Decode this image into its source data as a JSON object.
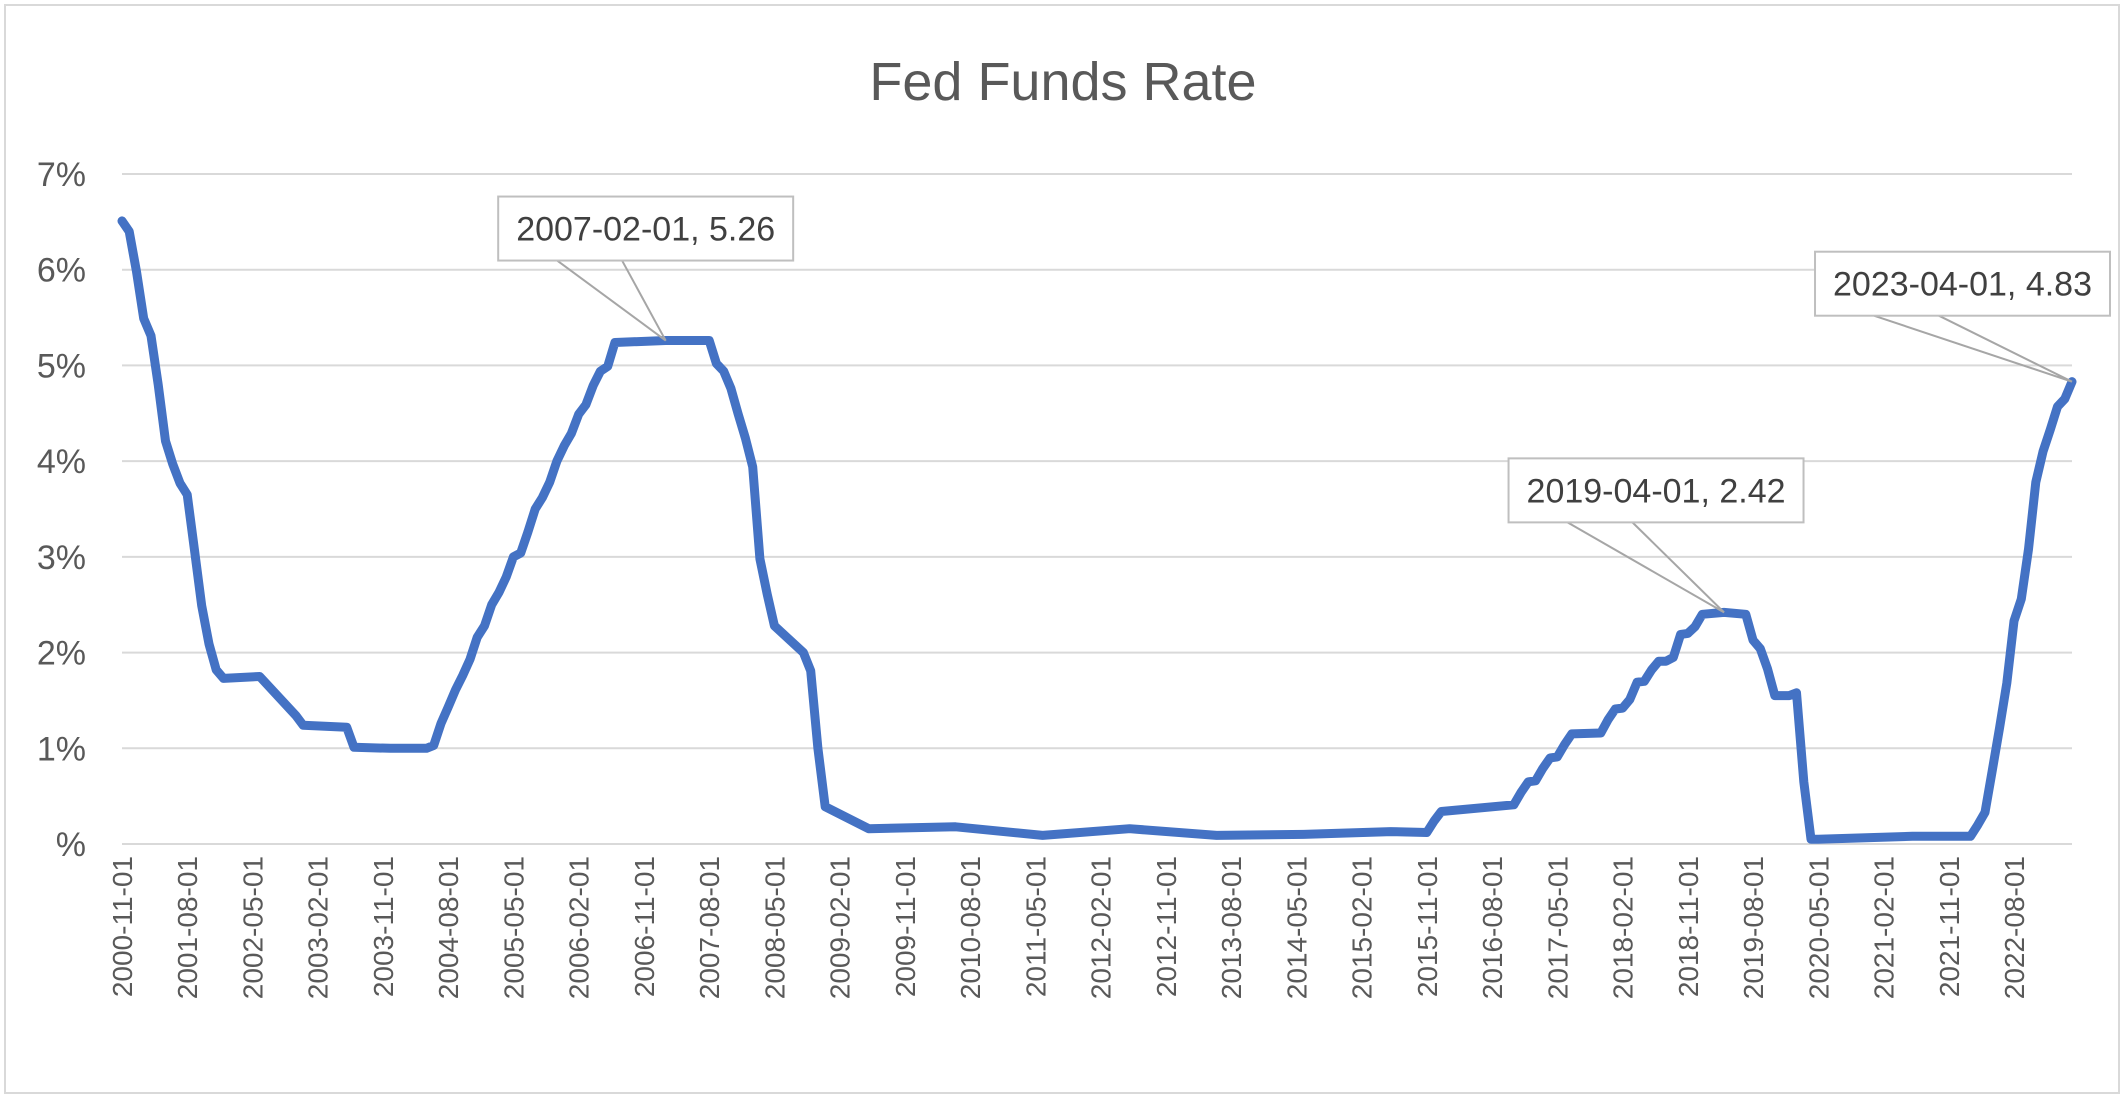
{
  "chart_data": {
    "type": "line",
    "title": "Fed Funds Rate",
    "xlabel": "",
    "ylabel": "",
    "ylim": [
      0,
      7
    ],
    "ytick_values": [
      0,
      1,
      2,
      3,
      4,
      5,
      6,
      7
    ],
    "ytick_labels": [
      "%",
      "1%",
      "2%",
      "3%",
      "4%",
      "5%",
      "6%",
      "7%"
    ],
    "xlim": [
      "2000-11-01",
      "2023-04-01"
    ],
    "xtick_labels": [
      "2000-11-01",
      "2001-08-01",
      "2002-05-01",
      "2003-02-01",
      "2003-11-01",
      "2004-08-01",
      "2005-05-01",
      "2006-02-01",
      "2006-11-01",
      "2007-08-01",
      "2008-05-01",
      "2009-02-01",
      "2009-11-01",
      "2010-08-01",
      "2011-05-01",
      "2012-02-01",
      "2012-11-01",
      "2013-08-01",
      "2014-05-01",
      "2015-02-01",
      "2015-11-01",
      "2016-08-01",
      "2017-05-01",
      "2018-02-01",
      "2018-11-01",
      "2019-08-01",
      "2020-05-01",
      "2021-02-01",
      "2021-11-01",
      "2022-08-01"
    ],
    "grid": true,
    "series_color": "#4472c4",
    "series": [
      {
        "x": [
          "2000-11-01",
          "2000-12-01",
          "2001-01-01",
          "2001-02-01",
          "2001-03-01",
          "2001-04-01",
          "2001-05-01",
          "2001-06-01",
          "2001-07-01",
          "2001-08-01",
          "2001-09-01",
          "2001-10-01",
          "2001-11-01",
          "2001-12-01",
          "2002-01-01",
          "2002-06-01",
          "2002-11-01",
          "2002-12-01",
          "2003-06-01",
          "2003-07-01",
          "2003-12-01",
          "2004-05-01",
          "2004-06-01",
          "2004-07-01",
          "2004-08-01",
          "2004-09-01",
          "2004-10-01",
          "2004-11-01",
          "2004-12-01",
          "2005-01-01",
          "2005-02-01",
          "2005-03-01",
          "2005-04-01",
          "2005-05-01",
          "2005-06-01",
          "2005-07-01",
          "2005-08-01",
          "2005-09-01",
          "2005-10-01",
          "2005-11-01",
          "2005-12-01",
          "2006-01-01",
          "2006-02-01",
          "2006-03-01",
          "2006-04-01",
          "2006-05-01",
          "2006-06-01",
          "2006-07-01",
          "2007-02-01",
          "2007-08-01",
          "2007-09-01",
          "2007-10-01",
          "2007-11-01",
          "2007-12-01",
          "2008-01-01",
          "2008-02-01",
          "2008-03-01",
          "2008-04-01",
          "2008-05-01",
          "2008-09-01",
          "2008-10-01",
          "2008-11-01",
          "2008-12-01",
          "2009-06-01",
          "2010-06-01",
          "2011-06-01",
          "2012-06-01",
          "2013-06-01",
          "2014-06-01",
          "2015-06-01",
          "2015-11-01",
          "2015-12-01",
          "2016-01-01",
          "2016-11-01",
          "2016-12-01",
          "2017-01-01",
          "2017-02-01",
          "2017-03-01",
          "2017-04-01",
          "2017-05-01",
          "2017-06-01",
          "2017-07-01",
          "2017-11-01",
          "2017-12-01",
          "2018-01-01",
          "2018-02-01",
          "2018-03-01",
          "2018-04-01",
          "2018-05-01",
          "2018-06-01",
          "2018-07-01",
          "2018-08-01",
          "2018-09-01",
          "2018-10-01",
          "2018-11-01",
          "2018-12-01",
          "2019-01-01",
          "2019-04-01",
          "2019-07-01",
          "2019-08-01",
          "2019-09-01",
          "2019-10-01",
          "2019-11-01",
          "2020-01-01",
          "2020-02-01",
          "2020-03-01",
          "2020-04-01",
          "2020-05-01",
          "2021-06-01",
          "2022-02-01",
          "2022-03-01",
          "2022-04-01",
          "2022-05-01",
          "2022-06-01",
          "2022-07-01",
          "2022-08-01",
          "2022-09-01",
          "2022-10-01",
          "2022-11-01",
          "2022-12-01",
          "2023-01-01",
          "2023-02-01",
          "2023-03-01",
          "2023-04-01"
        ],
        "values": [
          6.51,
          6.4,
          5.98,
          5.49,
          5.31,
          4.8,
          4.21,
          3.97,
          3.77,
          3.65,
          3.07,
          2.49,
          2.09,
          1.82,
          1.73,
          1.75,
          1.34,
          1.24,
          1.22,
          1.01,
          1.0,
          1.0,
          1.03,
          1.26,
          1.43,
          1.61,
          1.76,
          1.93,
          2.16,
          2.28,
          2.5,
          2.63,
          2.79,
          3.0,
          3.04,
          3.26,
          3.5,
          3.62,
          3.78,
          4.0,
          4.16,
          4.29,
          4.49,
          4.59,
          4.79,
          4.94,
          4.99,
          5.24,
          5.26,
          5.26,
          5.02,
          4.94,
          4.76,
          4.49,
          4.24,
          3.94,
          2.98,
          2.61,
          2.28,
          2.0,
          1.81,
          1.0,
          0.39,
          0.16,
          0.18,
          0.09,
          0.16,
          0.09,
          0.1,
          0.13,
          0.12,
          0.24,
          0.34,
          0.41,
          0.54,
          0.65,
          0.66,
          0.79,
          0.9,
          0.91,
          1.04,
          1.15,
          1.16,
          1.3,
          1.41,
          1.42,
          1.51,
          1.69,
          1.7,
          1.82,
          1.91,
          1.91,
          1.95,
          2.19,
          2.2,
          2.27,
          2.4,
          2.42,
          2.4,
          2.13,
          2.04,
          1.83,
          1.55,
          1.55,
          1.58,
          0.65,
          0.05,
          0.05,
          0.08,
          0.08,
          0.2,
          0.33,
          0.77,
          1.21,
          1.68,
          2.33,
          2.56,
          3.08,
          3.78,
          4.1,
          4.33,
          4.57,
          4.65,
          4.83
        ]
      }
    ],
    "annotations": [
      {
        "label": "2007-02-01, 5.26",
        "x": "2007-02-01",
        "y": 5.26
      },
      {
        "label": "2019-04-01, 2.42",
        "x": "2019-04-01",
        "y": 2.42
      },
      {
        "label": "2023-04-01, 4.83",
        "x": "2023-04-01",
        "y": 4.83
      }
    ]
  }
}
